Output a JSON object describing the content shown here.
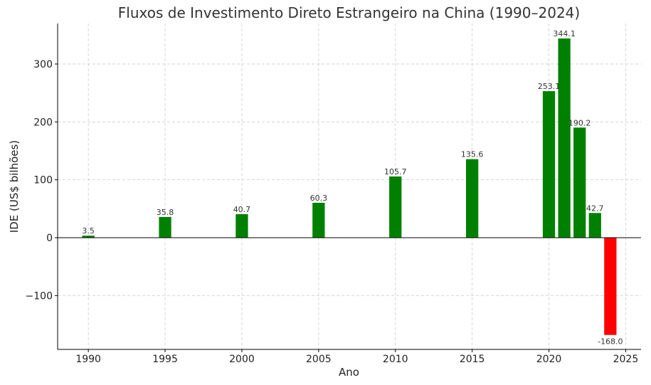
{
  "chart_data": {
    "type": "bar",
    "title": "Fluxos de Investimento Direto Estrangeiro na China (1990–2024)",
    "xlabel": "Ano",
    "ylabel": "IDE (US$ bilhões)",
    "x": [
      1990,
      1995,
      2000,
      2005,
      2010,
      2015,
      2020,
      2021,
      2022,
      2023,
      2024
    ],
    "values": [
      3.5,
      35.8,
      40.7,
      60.3,
      105.7,
      135.6,
      253.1,
      344.1,
      190.2,
      42.7,
      -168.0
    ],
    "value_labels": [
      "3.5",
      "35.8",
      "40.7",
      "60.3",
      "105.7",
      "135.6",
      "253.1",
      "344.1",
      "190.2",
      "42.7",
      "-168.0"
    ],
    "xlim": [
      1988,
      2026
    ],
    "ylim": [
      -193,
      370
    ],
    "xticks": [
      1990,
      1995,
      2000,
      2005,
      2010,
      2015,
      2020,
      2025
    ],
    "yticks": [
      -100,
      0,
      100,
      200,
      300
    ],
    "ytick_labels": [
      "−100",
      "0",
      "100",
      "200",
      "300"
    ],
    "grid": true,
    "colors": {
      "positive": "#008000",
      "negative": "#ff0000",
      "grid": "#cccccc",
      "axis": "#000000"
    }
  }
}
